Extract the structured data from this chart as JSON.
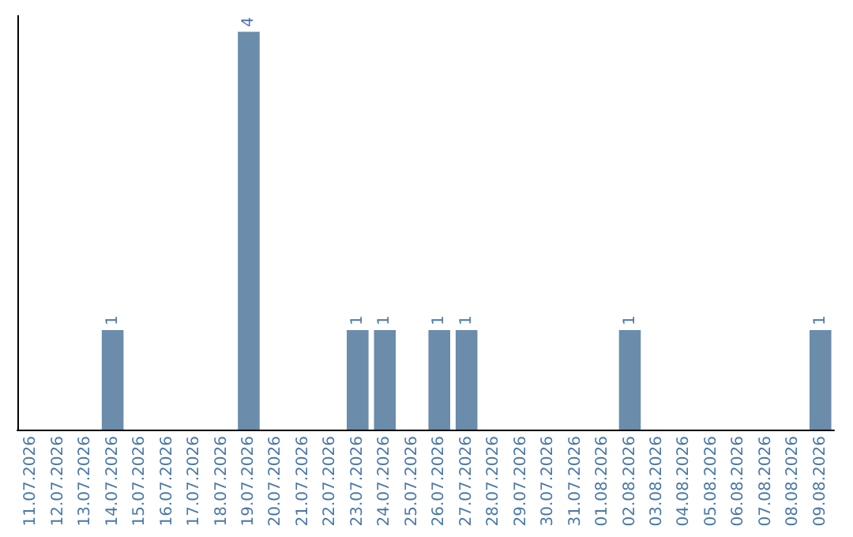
{
  "chart_data": {
    "type": "bar",
    "categories": [
      "11.07.2026",
      "12.07.2026",
      "13.07.2026",
      "14.07.2026",
      "15.07.2026",
      "16.07.2026",
      "17.07.2026",
      "18.07.2026",
      "19.07.2026",
      "20.07.2026",
      "21.07.2026",
      "22.07.2026",
      "23.07.2026",
      "24.07.2026",
      "25.07.2026",
      "26.07.2026",
      "27.07.2026",
      "28.07.2026",
      "29.07.2026",
      "30.07.2026",
      "31.07.2026",
      "01.08.2026",
      "02.08.2026",
      "03.08.2026",
      "04.08.2026",
      "05.08.2026",
      "06.08.2026",
      "07.08.2026",
      "08.08.2026",
      "09.08.2026"
    ],
    "values": [
      0,
      0,
      0,
      1,
      0,
      0,
      0,
      0,
      4,
      0,
      0,
      0,
      1,
      1,
      0,
      1,
      1,
      0,
      0,
      0,
      0,
      0,
      1,
      0,
      0,
      0,
      0,
      0,
      0,
      1
    ],
    "value_labels": [
      null,
      null,
      null,
      "1",
      null,
      null,
      null,
      null,
      "4",
      null,
      null,
      null,
      "1",
      "1",
      null,
      "1",
      "1",
      null,
      null,
      null,
      null,
      null,
      "1",
      null,
      null,
      null,
      null,
      null,
      null,
      "1"
    ],
    "color": "#6b8cab",
    "grid": false,
    "tick_labels": "x"
  }
}
